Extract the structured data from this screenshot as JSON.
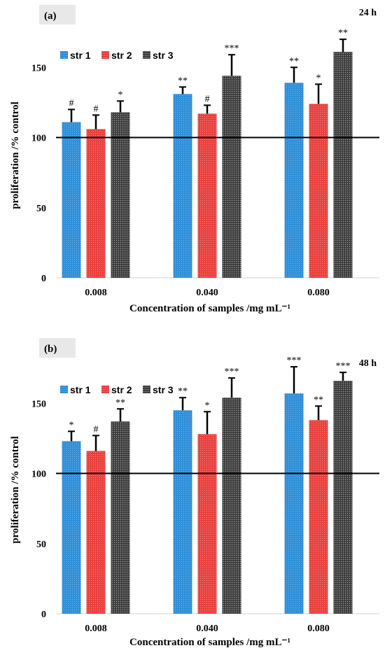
{
  "chart_data": [
    {
      "type": "bar",
      "panel_label": "(a)",
      "time_label": "24 h",
      "categories": [
        "0.008",
        "0.040",
        "0.080"
      ],
      "xlabel": "Concentration of samples /mg mL⁻¹",
      "ylabel": "proliferation /% control",
      "ylim": [
        0,
        175
      ],
      "yticks": [
        0,
        50,
        100,
        150
      ],
      "reference_line": 100,
      "legend_position": "top-left",
      "series": [
        {
          "name": "str 1",
          "color": "#2f8fd8",
          "values": [
            111,
            131,
            139
          ],
          "errors": [
            9,
            5,
            11
          ],
          "significance": [
            "#",
            "**",
            "**"
          ]
        },
        {
          "name": "str 2",
          "color": "#e8413e",
          "values": [
            106,
            117,
            124
          ],
          "errors": [
            10,
            6,
            14
          ],
          "significance": [
            "#",
            "#",
            "*"
          ]
        },
        {
          "name": "str 3",
          "color": "#4a4a4a",
          "values": [
            118,
            144,
            161
          ],
          "errors": [
            8,
            15,
            9
          ],
          "significance": [
            "*",
            "***",
            "**"
          ]
        }
      ]
    },
    {
      "type": "bar",
      "panel_label": "(b)",
      "time_label": "48 h",
      "categories": [
        "0.008",
        "0.040",
        "0.080"
      ],
      "xlabel": "Concentration of samples /mg mL⁻¹",
      "ylabel": "proliferation /% control",
      "ylim": [
        0,
        175
      ],
      "yticks": [
        0,
        50,
        100,
        150
      ],
      "reference_line": 100,
      "legend_position": "top-left",
      "series": [
        {
          "name": "str 1",
          "color": "#2f8fd8",
          "values": [
            123,
            145,
            157
          ],
          "errors": [
            7,
            9,
            19
          ],
          "significance": [
            "*",
            "**",
            "***"
          ]
        },
        {
          "name": "str 2",
          "color": "#e8413e",
          "values": [
            116,
            128,
            138
          ],
          "errors": [
            11,
            16,
            10
          ],
          "significance": [
            "#",
            "*",
            "**"
          ]
        },
        {
          "name": "str 3",
          "color": "#4a4a4a",
          "values": [
            137,
            154,
            166
          ],
          "errors": [
            9,
            14,
            6
          ],
          "significance": [
            "**",
            "***",
            "***"
          ]
        }
      ]
    }
  ]
}
